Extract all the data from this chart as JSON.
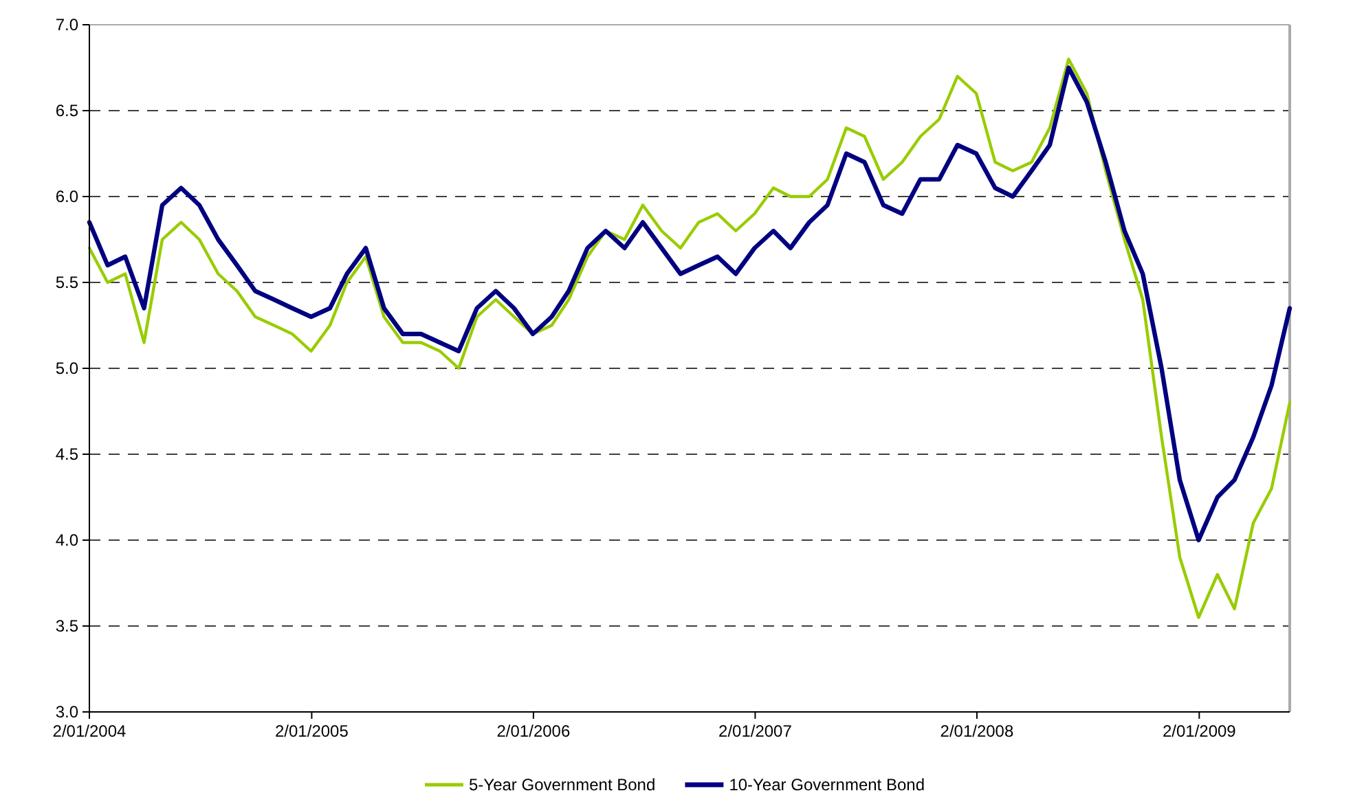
{
  "chart_data": {
    "type": "line",
    "x": [
      "2004-01-02",
      "2004-02-01",
      "2004-03-01",
      "2004-04-01",
      "2004-05-01",
      "2004-06-01",
      "2004-07-01",
      "2004-08-01",
      "2004-09-01",
      "2004-10-01",
      "2004-11-01",
      "2004-12-01",
      "2005-01-01",
      "2005-02-01",
      "2005-03-01",
      "2005-04-01",
      "2005-05-01",
      "2005-06-01",
      "2005-07-01",
      "2005-08-01",
      "2005-09-01",
      "2005-10-01",
      "2005-11-01",
      "2005-12-01",
      "2006-01-01",
      "2006-02-01",
      "2006-03-01",
      "2006-04-01",
      "2006-05-01",
      "2006-06-01",
      "2006-07-01",
      "2006-08-01",
      "2006-09-01",
      "2006-10-01",
      "2006-11-01",
      "2006-12-01",
      "2007-01-01",
      "2007-02-01",
      "2007-03-01",
      "2007-04-01",
      "2007-05-01",
      "2007-06-01",
      "2007-07-01",
      "2007-08-01",
      "2007-09-01",
      "2007-10-01",
      "2007-11-01",
      "2007-12-01",
      "2008-01-01",
      "2008-02-01",
      "2008-03-01",
      "2008-04-01",
      "2008-05-01",
      "2008-06-01",
      "2008-07-01",
      "2008-08-01",
      "2008-09-01",
      "2008-10-01",
      "2008-11-01",
      "2008-12-01",
      "2009-01-01",
      "2009-02-01",
      "2009-03-01",
      "2009-04-01",
      "2009-05-01",
      "2009-05-31"
    ],
    "series": [
      {
        "name": "5-Year Government Bond",
        "color": "#99cc00",
        "values": [
          5.7,
          5.5,
          5.55,
          5.15,
          5.75,
          5.85,
          5.75,
          5.55,
          5.45,
          5.3,
          5.25,
          5.2,
          5.1,
          5.25,
          5.5,
          5.65,
          5.3,
          5.15,
          5.15,
          5.1,
          5.0,
          5.3,
          5.4,
          5.3,
          5.2,
          5.25,
          5.4,
          5.65,
          5.8,
          5.75,
          5.95,
          5.8,
          5.7,
          5.85,
          5.9,
          5.8,
          5.9,
          6.05,
          6.0,
          6.0,
          6.1,
          6.4,
          6.35,
          6.1,
          6.2,
          6.35,
          6.45,
          6.7,
          6.6,
          6.2,
          6.15,
          6.2,
          6.4,
          6.8,
          6.6,
          6.15,
          5.75,
          5.4,
          4.6,
          3.9,
          3.55,
          3.8,
          3.6,
          4.1,
          4.3,
          4.8
        ]
      },
      {
        "name": "10-Year Government Bond",
        "color": "#000080",
        "values": [
          5.85,
          5.6,
          5.65,
          5.35,
          5.95,
          6.05,
          5.95,
          5.75,
          5.6,
          5.45,
          5.4,
          5.35,
          5.3,
          5.35,
          5.55,
          5.7,
          5.35,
          5.2,
          5.2,
          5.15,
          5.1,
          5.35,
          5.45,
          5.35,
          5.2,
          5.3,
          5.45,
          5.7,
          5.8,
          5.7,
          5.85,
          5.7,
          5.55,
          5.6,
          5.65,
          5.55,
          5.7,
          5.8,
          5.7,
          5.85,
          5.95,
          6.25,
          6.2,
          5.95,
          5.9,
          6.1,
          6.1,
          6.3,
          6.25,
          6.05,
          6.0,
          6.15,
          6.3,
          6.75,
          6.55,
          6.2,
          5.8,
          5.55,
          5.0,
          4.35,
          4.0,
          4.25,
          4.35,
          4.6,
          4.9,
          5.35
        ]
      }
    ],
    "xlim": [
      "2004-01-02",
      "2009-05-31"
    ],
    "xticks": [
      {
        "value": "2004-01-02",
        "label": "2/01/2004"
      },
      {
        "value": "2005-01-02",
        "label": "2/01/2005"
      },
      {
        "value": "2006-01-02",
        "label": "2/01/2006"
      },
      {
        "value": "2007-01-02",
        "label": "2/01/2007"
      },
      {
        "value": "2008-01-02",
        "label": "2/01/2008"
      },
      {
        "value": "2009-01-02",
        "label": "2/01/2009"
      }
    ],
    "ylim": [
      3.0,
      7.0
    ],
    "yticks": [
      {
        "value": 3.0,
        "label": "3.0"
      },
      {
        "value": 3.5,
        "label": "3.5"
      },
      {
        "value": 4.0,
        "label": "4.0"
      },
      {
        "value": 4.5,
        "label": "4.5"
      },
      {
        "value": 5.0,
        "label": "5.0"
      },
      {
        "value": 5.5,
        "label": "5.5"
      },
      {
        "value": 6.0,
        "label": "6.0"
      },
      {
        "value": 6.5,
        "label": "6.5"
      },
      {
        "value": 7.0,
        "label": "7.0"
      }
    ],
    "grid": "y",
    "legend": "bottom",
    "line_style": "solid",
    "marker": "none"
  }
}
